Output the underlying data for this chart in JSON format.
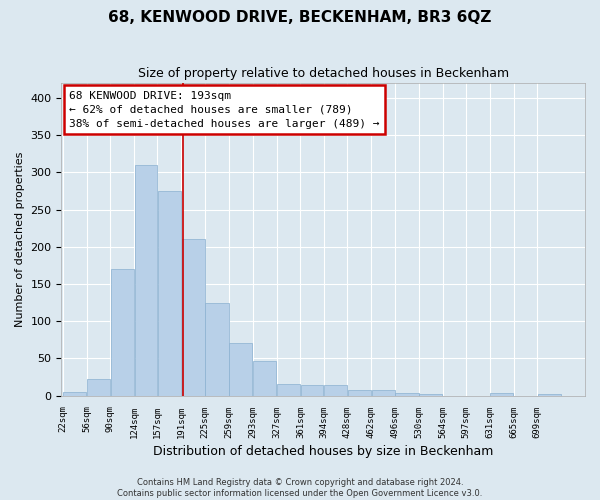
{
  "title": "68, KENWOOD DRIVE, BECKENHAM, BR3 6QZ",
  "subtitle": "Size of property relative to detached houses in Beckenham",
  "xlabel": "Distribution of detached houses by size in Beckenham",
  "ylabel": "Number of detached properties",
  "bar_color": "#b8d0e8",
  "bar_edge_color": "#8ab0d0",
  "background_color": "#dce8f0",
  "fig_background_color": "#dce8f0",
  "grid_color": "#ffffff",
  "bin_labels": [
    "22sqm",
    "56sqm",
    "90sqm",
    "124sqm",
    "157sqm",
    "191sqm",
    "225sqm",
    "259sqm",
    "293sqm",
    "327sqm",
    "361sqm",
    "394sqm",
    "428sqm",
    "462sqm",
    "496sqm",
    "530sqm",
    "564sqm",
    "597sqm",
    "631sqm",
    "665sqm",
    "699sqm"
  ],
  "bin_edges": [
    22,
    56,
    90,
    124,
    157,
    191,
    225,
    259,
    293,
    327,
    361,
    394,
    428,
    462,
    496,
    530,
    564,
    597,
    631,
    665,
    699,
    733
  ],
  "counts": [
    5,
    22,
    170,
    310,
    275,
    210,
    125,
    70,
    47,
    15,
    14,
    14,
    8,
    8,
    3,
    2,
    0,
    0,
    3,
    0,
    2
  ],
  "property_size": 193,
  "annotation_title": "68 KENWOOD DRIVE: 193sqm",
  "annotation_line1": "← 62% of detached houses are smaller (789)",
  "annotation_line2": "38% of semi-detached houses are larger (489) →",
  "annotation_box_color": "#ffffff",
  "annotation_box_edge_color": "#cc0000",
  "vline_color": "#cc0000",
  "ylim": [
    0,
    420
  ],
  "yticks": [
    0,
    50,
    100,
    150,
    200,
    250,
    300,
    350,
    400
  ],
  "footer_line1": "Contains HM Land Registry data © Crown copyright and database right 2024.",
  "footer_line2": "Contains public sector information licensed under the Open Government Licence v3.0."
}
